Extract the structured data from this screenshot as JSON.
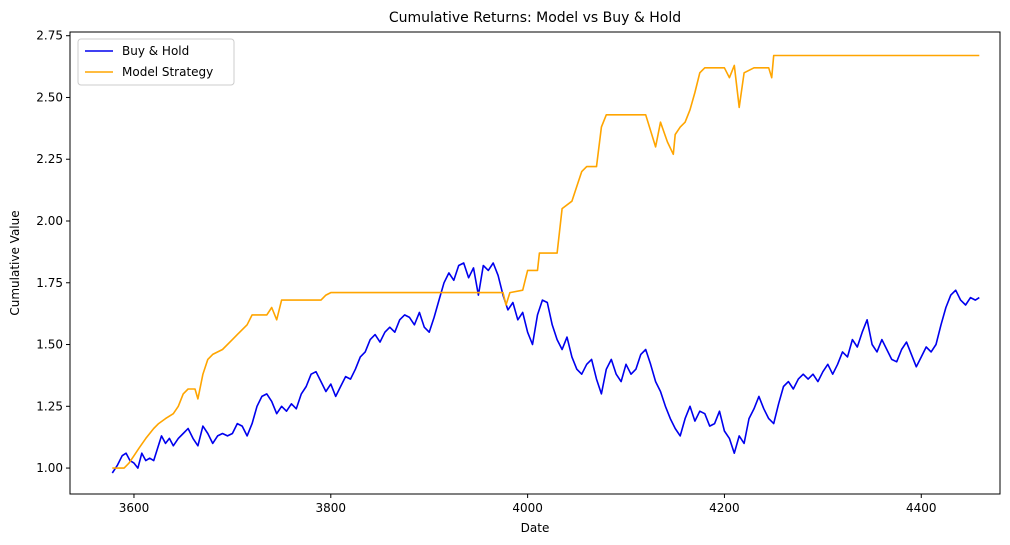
{
  "chart_data": {
    "type": "line",
    "title": "Cumulative Returns: Model vs Buy & Hold",
    "xlabel": "Date",
    "ylabel": "Cumulative Value",
    "xlim": [
      3535,
      4480
    ],
    "ylim": [
      0.895,
      2.765
    ],
    "xticks": [
      3600,
      3800,
      4000,
      4200,
      4400
    ],
    "yticks": [
      1.0,
      1.25,
      1.5,
      1.75,
      2.0,
      2.25,
      2.5,
      2.75
    ],
    "ytick_labels": [
      "1.00",
      "1.25",
      "1.50",
      "1.75",
      "2.00",
      "2.25",
      "2.50",
      "2.75"
    ],
    "grid": false,
    "legend_position": "top-left",
    "series": [
      {
        "name": "Buy & Hold",
        "color": "#0000ee",
        "points": [
          [
            3578,
            0.98
          ],
          [
            3583,
            1.01
          ],
          [
            3588,
            1.05
          ],
          [
            3592,
            1.06
          ],
          [
            3596,
            1.03
          ],
          [
            3600,
            1.02
          ],
          [
            3604,
            1.0
          ],
          [
            3608,
            1.06
          ],
          [
            3612,
            1.03
          ],
          [
            3616,
            1.04
          ],
          [
            3620,
            1.03
          ],
          [
            3624,
            1.08
          ],
          [
            3628,
            1.13
          ],
          [
            3632,
            1.1
          ],
          [
            3636,
            1.12
          ],
          [
            3640,
            1.09
          ],
          [
            3645,
            1.12
          ],
          [
            3650,
            1.14
          ],
          [
            3655,
            1.16
          ],
          [
            3660,
            1.12
          ],
          [
            3665,
            1.09
          ],
          [
            3670,
            1.17
          ],
          [
            3675,
            1.14
          ],
          [
            3680,
            1.1
          ],
          [
            3685,
            1.13
          ],
          [
            3690,
            1.14
          ],
          [
            3695,
            1.13
          ],
          [
            3700,
            1.14
          ],
          [
            3705,
            1.18
          ],
          [
            3710,
            1.17
          ],
          [
            3715,
            1.13
          ],
          [
            3720,
            1.18
          ],
          [
            3725,
            1.25
          ],
          [
            3730,
            1.29
          ],
          [
            3735,
            1.3
          ],
          [
            3740,
            1.27
          ],
          [
            3745,
            1.22
          ],
          [
            3750,
            1.25
          ],
          [
            3755,
            1.23
          ],
          [
            3760,
            1.26
          ],
          [
            3765,
            1.24
          ],
          [
            3770,
            1.3
          ],
          [
            3775,
            1.33
          ],
          [
            3780,
            1.38
          ],
          [
            3785,
            1.39
          ],
          [
            3790,
            1.35
          ],
          [
            3795,
            1.31
          ],
          [
            3800,
            1.34
          ],
          [
            3805,
            1.29
          ],
          [
            3810,
            1.33
          ],
          [
            3815,
            1.37
          ],
          [
            3820,
            1.36
          ],
          [
            3825,
            1.4
          ],
          [
            3830,
            1.45
          ],
          [
            3835,
            1.47
          ],
          [
            3840,
            1.52
          ],
          [
            3845,
            1.54
          ],
          [
            3850,
            1.51
          ],
          [
            3855,
            1.55
          ],
          [
            3860,
            1.57
          ],
          [
            3865,
            1.55
          ],
          [
            3870,
            1.6
          ],
          [
            3875,
            1.62
          ],
          [
            3880,
            1.61
          ],
          [
            3885,
            1.58
          ],
          [
            3890,
            1.63
          ],
          [
            3895,
            1.57
          ],
          [
            3900,
            1.55
          ],
          [
            3905,
            1.61
          ],
          [
            3910,
            1.68
          ],
          [
            3915,
            1.75
          ],
          [
            3920,
            1.79
          ],
          [
            3925,
            1.76
          ],
          [
            3930,
            1.82
          ],
          [
            3935,
            1.83
          ],
          [
            3940,
            1.77
          ],
          [
            3945,
            1.81
          ],
          [
            3950,
            1.7
          ],
          [
            3955,
            1.82
          ],
          [
            3960,
            1.8
          ],
          [
            3965,
            1.83
          ],
          [
            3970,
            1.78
          ],
          [
            3975,
            1.7
          ],
          [
            3980,
            1.64
          ],
          [
            3985,
            1.67
          ],
          [
            3990,
            1.6
          ],
          [
            3995,
            1.63
          ],
          [
            4000,
            1.55
          ],
          [
            4005,
            1.5
          ],
          [
            4010,
            1.62
          ],
          [
            4015,
            1.68
          ],
          [
            4020,
            1.67
          ],
          [
            4025,
            1.58
          ],
          [
            4030,
            1.52
          ],
          [
            4035,
            1.48
          ],
          [
            4040,
            1.53
          ],
          [
            4045,
            1.45
          ],
          [
            4050,
            1.4
          ],
          [
            4055,
            1.38
          ],
          [
            4060,
            1.42
          ],
          [
            4065,
            1.44
          ],
          [
            4070,
            1.36
          ],
          [
            4075,
            1.3
          ],
          [
            4080,
            1.4
          ],
          [
            4085,
            1.44
          ],
          [
            4090,
            1.38
          ],
          [
            4095,
            1.35
          ],
          [
            4100,
            1.42
          ],
          [
            4105,
            1.38
          ],
          [
            4110,
            1.4
          ],
          [
            4115,
            1.46
          ],
          [
            4120,
            1.48
          ],
          [
            4125,
            1.42
          ],
          [
            4130,
            1.35
          ],
          [
            4135,
            1.31
          ],
          [
            4140,
            1.25
          ],
          [
            4145,
            1.2
          ],
          [
            4150,
            1.16
          ],
          [
            4155,
            1.13
          ],
          [
            4160,
            1.2
          ],
          [
            4165,
            1.25
          ],
          [
            4170,
            1.19
          ],
          [
            4175,
            1.23
          ],
          [
            4180,
            1.22
          ],
          [
            4185,
            1.17
          ],
          [
            4190,
            1.18
          ],
          [
            4195,
            1.23
          ],
          [
            4200,
            1.15
          ],
          [
            4205,
            1.12
          ],
          [
            4210,
            1.06
          ],
          [
            4215,
            1.13
          ],
          [
            4220,
            1.1
          ],
          [
            4225,
            1.2
          ],
          [
            4230,
            1.24
          ],
          [
            4235,
            1.29
          ],
          [
            4240,
            1.24
          ],
          [
            4245,
            1.2
          ],
          [
            4250,
            1.18
          ],
          [
            4255,
            1.26
          ],
          [
            4260,
            1.33
          ],
          [
            4265,
            1.35
          ],
          [
            4270,
            1.32
          ],
          [
            4275,
            1.36
          ],
          [
            4280,
            1.38
          ],
          [
            4285,
            1.36
          ],
          [
            4290,
            1.38
          ],
          [
            4295,
            1.35
          ],
          [
            4300,
            1.39
          ],
          [
            4305,
            1.42
          ],
          [
            4310,
            1.38
          ],
          [
            4315,
            1.42
          ],
          [
            4320,
            1.47
          ],
          [
            4325,
            1.45
          ],
          [
            4330,
            1.52
          ],
          [
            4335,
            1.49
          ],
          [
            4340,
            1.55
          ],
          [
            4345,
            1.6
          ],
          [
            4350,
            1.5
          ],
          [
            4355,
            1.47
          ],
          [
            4360,
            1.52
          ],
          [
            4365,
            1.48
          ],
          [
            4370,
            1.44
          ],
          [
            4375,
            1.43
          ],
          [
            4380,
            1.48
          ],
          [
            4385,
            1.51
          ],
          [
            4390,
            1.46
          ],
          [
            4395,
            1.41
          ],
          [
            4400,
            1.45
          ],
          [
            4405,
            1.49
          ],
          [
            4410,
            1.47
          ],
          [
            4415,
            1.5
          ],
          [
            4420,
            1.58
          ],
          [
            4425,
            1.65
          ],
          [
            4430,
            1.7
          ],
          [
            4435,
            1.72
          ],
          [
            4440,
            1.68
          ],
          [
            4445,
            1.66
          ],
          [
            4450,
            1.69
          ],
          [
            4455,
            1.68
          ],
          [
            4459,
            1.69
          ]
        ]
      },
      {
        "name": "Model Strategy",
        "color": "#ffa500",
        "points": [
          [
            3578,
            1.0
          ],
          [
            3590,
            1.0
          ],
          [
            3595,
            1.02
          ],
          [
            3600,
            1.05
          ],
          [
            3605,
            1.08
          ],
          [
            3612,
            1.12
          ],
          [
            3620,
            1.16
          ],
          [
            3625,
            1.18
          ],
          [
            3632,
            1.2
          ],
          [
            3640,
            1.22
          ],
          [
            3645,
            1.25
          ],
          [
            3650,
            1.3
          ],
          [
            3655,
            1.32
          ],
          [
            3662,
            1.32
          ],
          [
            3665,
            1.28
          ],
          [
            3670,
            1.38
          ],
          [
            3675,
            1.44
          ],
          [
            3680,
            1.46
          ],
          [
            3690,
            1.48
          ],
          [
            3700,
            1.52
          ],
          [
            3705,
            1.54
          ],
          [
            3715,
            1.58
          ],
          [
            3720,
            1.62
          ],
          [
            3735,
            1.62
          ],
          [
            3740,
            1.65
          ],
          [
            3745,
            1.6
          ],
          [
            3750,
            1.68
          ],
          [
            3775,
            1.68
          ],
          [
            3790,
            1.68
          ],
          [
            3795,
            1.7
          ],
          [
            3800,
            1.71
          ],
          [
            3870,
            1.71
          ],
          [
            3975,
            1.71
          ],
          [
            3978,
            1.66
          ],
          [
            3982,
            1.71
          ],
          [
            3995,
            1.72
          ],
          [
            4000,
            1.8
          ],
          [
            4010,
            1.8
          ],
          [
            4012,
            1.87
          ],
          [
            4030,
            1.87
          ],
          [
            4035,
            2.05
          ],
          [
            4045,
            2.08
          ],
          [
            4050,
            2.14
          ],
          [
            4055,
            2.2
          ],
          [
            4060,
            2.22
          ],
          [
            4070,
            2.22
          ],
          [
            4075,
            2.38
          ],
          [
            4080,
            2.43
          ],
          [
            4120,
            2.43
          ],
          [
            4130,
            2.3
          ],
          [
            4135,
            2.4
          ],
          [
            4142,
            2.32
          ],
          [
            4148,
            2.27
          ],
          [
            4150,
            2.35
          ],
          [
            4155,
            2.38
          ],
          [
            4160,
            2.4
          ],
          [
            4165,
            2.45
          ],
          [
            4170,
            2.52
          ],
          [
            4175,
            2.6
          ],
          [
            4180,
            2.62
          ],
          [
            4200,
            2.62
          ],
          [
            4205,
            2.58
          ],
          [
            4210,
            2.63
          ],
          [
            4215,
            2.46
          ],
          [
            4220,
            2.6
          ],
          [
            4230,
            2.62
          ],
          [
            4245,
            2.62
          ],
          [
            4248,
            2.58
          ],
          [
            4250,
            2.67
          ],
          [
            4300,
            2.67
          ],
          [
            4400,
            2.67
          ],
          [
            4459,
            2.67
          ]
        ]
      }
    ]
  }
}
